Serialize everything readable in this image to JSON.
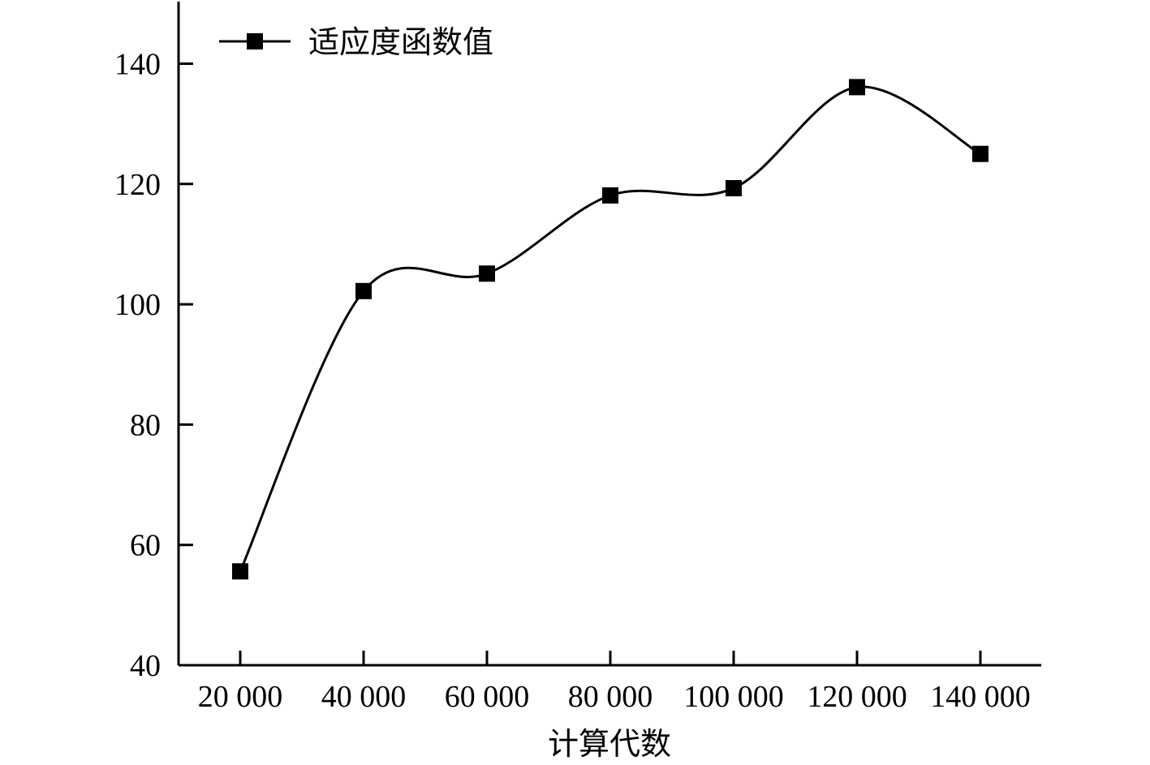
{
  "chart_data": {
    "type": "line",
    "xlabel": "计算代数",
    "ylabel": "",
    "categories": [
      "20 000",
      "40 000",
      "60 000",
      "80 000",
      "100 000",
      "120 000",
      "140 000"
    ],
    "x": [
      20000,
      40000,
      60000,
      80000,
      100000,
      120000,
      140000
    ],
    "ylim": [
      40,
      150
    ],
    "yticks": [
      40,
      60,
      80,
      100,
      120,
      140
    ],
    "ytick_labels": [
      "40",
      "60",
      "80",
      "100",
      "120",
      "140"
    ],
    "grid": false,
    "legend_position": "top-left",
    "series": [
      {
        "name": "适应度函数值",
        "values": [
          55.6,
          102.2,
          105.1,
          118.1,
          119.3,
          136.1,
          125.0
        ],
        "color": "#000000",
        "marker": "square",
        "smooth": true
      }
    ]
  }
}
